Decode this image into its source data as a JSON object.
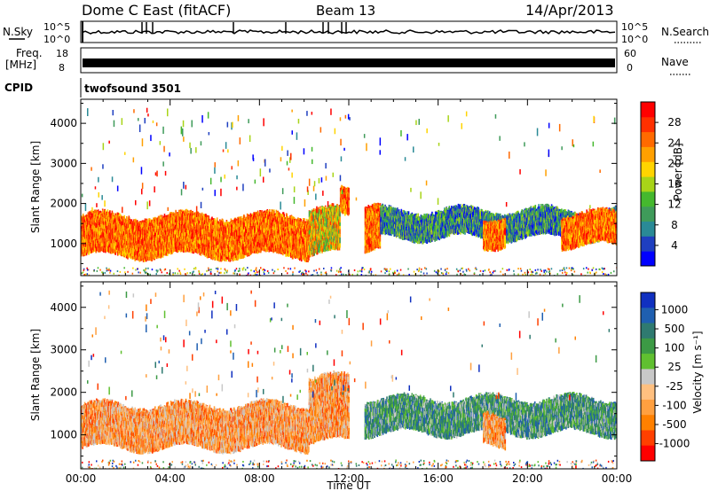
{
  "header": {
    "station": "Dome C East (fitACF)",
    "beam": "Beam 13",
    "date": "14/Apr/2013"
  },
  "strip": {
    "nsky_label": "N.Sky",
    "nsky_ticks": [
      "10^5",
      "10^0"
    ],
    "nsearch_label": "N.Search",
    "nsearch_ticks": [
      "10^5",
      "10^0"
    ],
    "freq_label_1": "Freq.",
    "freq_label_2": "[MHz]",
    "freq_ticks": [
      "18",
      "8"
    ],
    "nave_label": "Nave",
    "nave_ticks": [
      "60",
      "0"
    ],
    "cpid_label": "CPID",
    "cpid_value": "twofsound 3501"
  },
  "chart_data": [
    {
      "type": "heatmap",
      "name": "power-panel",
      "ylabel": "Slant Range [km]",
      "xlabel": "",
      "y_ticks": [
        "1000",
        "2000",
        "3000",
        "4000"
      ],
      "y_tick_values": [
        1000,
        2000,
        3000,
        4000
      ],
      "ylim": [
        200,
        4600
      ],
      "xlim": [
        0,
        24
      ],
      "colorbar": {
        "label": "Power [dB]",
        "ticks": [
          "4",
          "8",
          "12",
          "16",
          "20",
          "24",
          "28"
        ],
        "colors": [
          "#0000ff",
          "#1f3fc0",
          "#2a8a96",
          "#3f9b5a",
          "#45b82e",
          "#a8d418",
          "#ffd400",
          "#ffa000",
          "#ff6a00",
          "#ff3000",
          "#ff0000"
        ]
      },
      "bands": [
        {
          "t0": 0.0,
          "t1": 10.2,
          "low": 650,
          "high": 1750,
          "level": "high"
        },
        {
          "t0": 10.2,
          "t1": 11.6,
          "low": 700,
          "high": 1900,
          "level": "mid"
        },
        {
          "t0": 11.6,
          "t1": 12.0,
          "low": 1700,
          "high": 2450,
          "level": "high"
        },
        {
          "t0": 12.7,
          "t1": 13.4,
          "low": 800,
          "high": 2000,
          "level": "high"
        },
        {
          "t0": 13.4,
          "t1": 24.0,
          "low": 1100,
          "high": 1880,
          "level": "low"
        },
        {
          "t0": 18.0,
          "t1": 19.0,
          "low": 900,
          "high": 1700,
          "level": "high"
        },
        {
          "t0": 21.5,
          "t1": 24.0,
          "low": 900,
          "high": 1800,
          "level": "high"
        }
      ]
    },
    {
      "type": "heatmap",
      "name": "velocity-panel",
      "ylabel": "Slant Range [km]",
      "xlabel": "Time UT",
      "x_ticks": [
        "00:00",
        "04:00",
        "08:00",
        "12:00",
        "16:00",
        "20:00",
        "00:00"
      ],
      "x_tick_values": [
        0,
        4,
        8,
        12,
        16,
        20,
        24
      ],
      "y_ticks": [
        "1000",
        "2000",
        "3000",
        "4000"
      ],
      "y_tick_values": [
        1000,
        2000,
        3000,
        4000
      ],
      "ylim": [
        200,
        4600
      ],
      "xlim": [
        0,
        24
      ],
      "colorbar": {
        "label": "Velocity [m s⁻¹]",
        "ticks": [
          "1000",
          "500",
          "100",
          "25",
          "-25",
          "-100",
          "-500",
          "-1000"
        ],
        "colors": [
          "#1030c0",
          "#1f5fb0",
          "#2f7a70",
          "#3c9a45",
          "#60c030",
          "#c8c8c8",
          "#ffc080",
          "#ffa040",
          "#ff8000",
          "#ff4000",
          "#ff0000"
        ]
      },
      "bands": [
        {
          "t0": 0.0,
          "t1": 10.2,
          "low": 650,
          "high": 1750,
          "level": "neg"
        },
        {
          "t0": 10.2,
          "t1": 12.0,
          "low": 800,
          "high": 2400,
          "level": "neg"
        },
        {
          "t0": 12.7,
          "t1": 24.0,
          "low": 1000,
          "high": 1900,
          "level": "pos"
        },
        {
          "t0": 18.0,
          "t1": 19.0,
          "low": 700,
          "high": 1500,
          "level": "neg"
        }
      ]
    }
  ]
}
